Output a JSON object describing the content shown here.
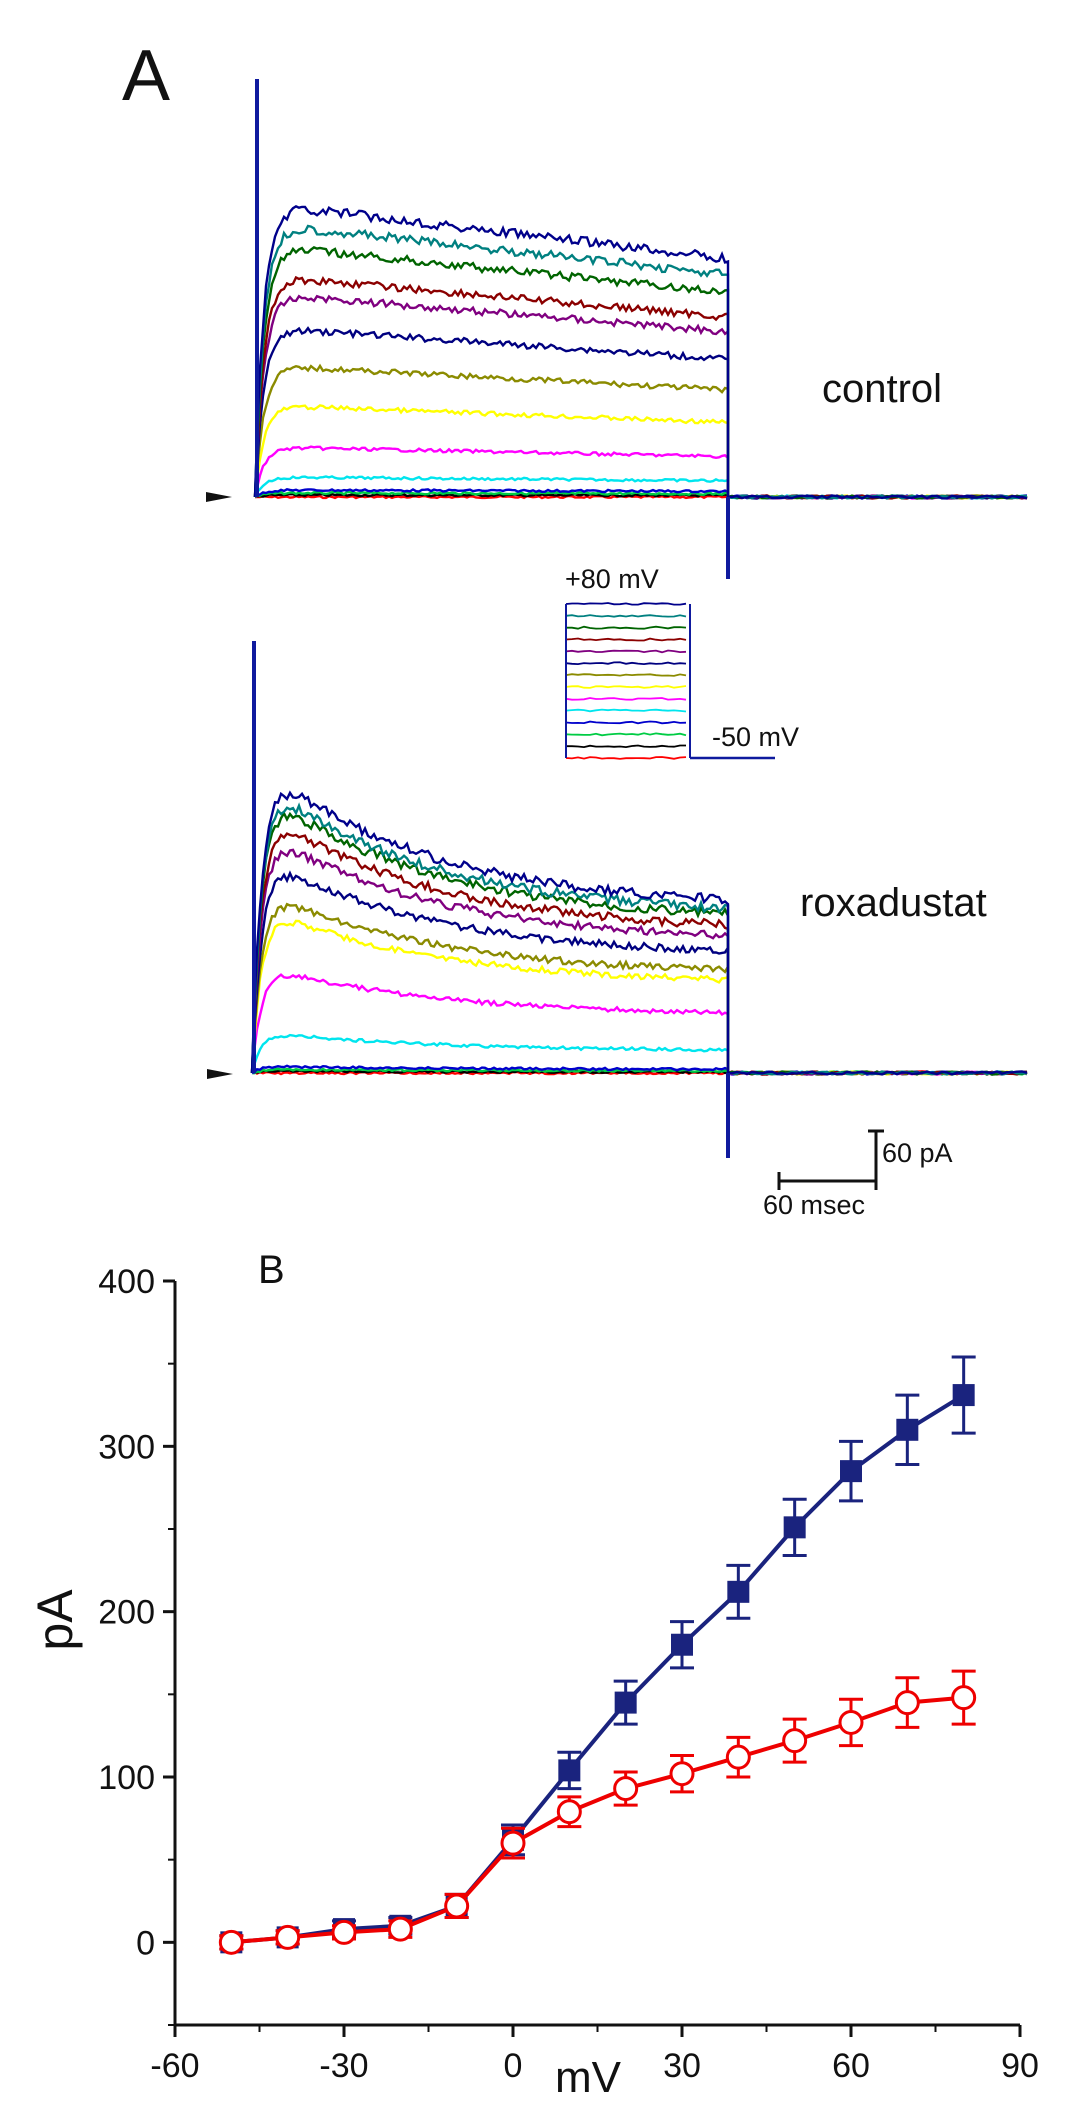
{
  "panel_a": {
    "label": "A",
    "control_label": "control",
    "roxadustat_label": "roxadustat",
    "protocol": {
      "top_label": "+80 mV",
      "bottom_label": "-50 mV"
    },
    "scale_bar": {
      "current_label": "60 pA",
      "time_label": "60 msec"
    }
  },
  "panel_b": {
    "label": "B"
  },
  "trace_colors": [
    "#ff0000",
    "#000000",
    "#00cc44",
    "#0000cc",
    "#00e5ee",
    "#ff00ff",
    "#ffff00",
    "#8b8b00",
    "#000080",
    "#800080",
    "#8b0000",
    "#006400",
    "#008080",
    "#00008b"
  ],
  "colors": {
    "control": "#1a237e",
    "roxadustat": "#ee0000"
  },
  "chart_data": {
    "type": "line",
    "title": "",
    "xlabel": "mV",
    "ylabel": "pA",
    "xlim": [
      -60,
      90
    ],
    "ylim": [
      -50,
      400
    ],
    "xticks": [
      -60,
      -30,
      0,
      30,
      60,
      90
    ],
    "yticks": [
      0,
      100,
      200,
      300,
      400
    ],
    "xtick_labels": [
      "-60",
      "-30",
      "0",
      "30",
      "60",
      "90"
    ],
    "ytick_labels": [
      "0",
      "100",
      "200",
      "300",
      "400"
    ],
    "x": [
      -50,
      -40,
      -30,
      -20,
      -10,
      0,
      10,
      20,
      30,
      40,
      50,
      60,
      70,
      80
    ],
    "series": [
      {
        "name": "control",
        "marker": "filled-square",
        "color": "#1a237e",
        "values": [
          0,
          3,
          8,
          10,
          22,
          62,
          104,
          145,
          180,
          212,
          251,
          285,
          310,
          331
        ],
        "errors": [
          4,
          4,
          5,
          5,
          7,
          9,
          11,
          13,
          14,
          16,
          17,
          18,
          21,
          23
        ]
      },
      {
        "name": "roxadustat",
        "marker": "open-circle",
        "color": "#ee0000",
        "values": [
          0,
          3,
          6,
          8,
          22,
          60,
          79,
          93,
          102,
          112,
          122,
          133,
          145,
          148
        ],
        "errors": [
          4,
          4,
          4,
          5,
          7,
          9,
          9,
          10,
          11,
          12,
          13,
          14,
          15,
          16
        ]
      }
    ]
  }
}
